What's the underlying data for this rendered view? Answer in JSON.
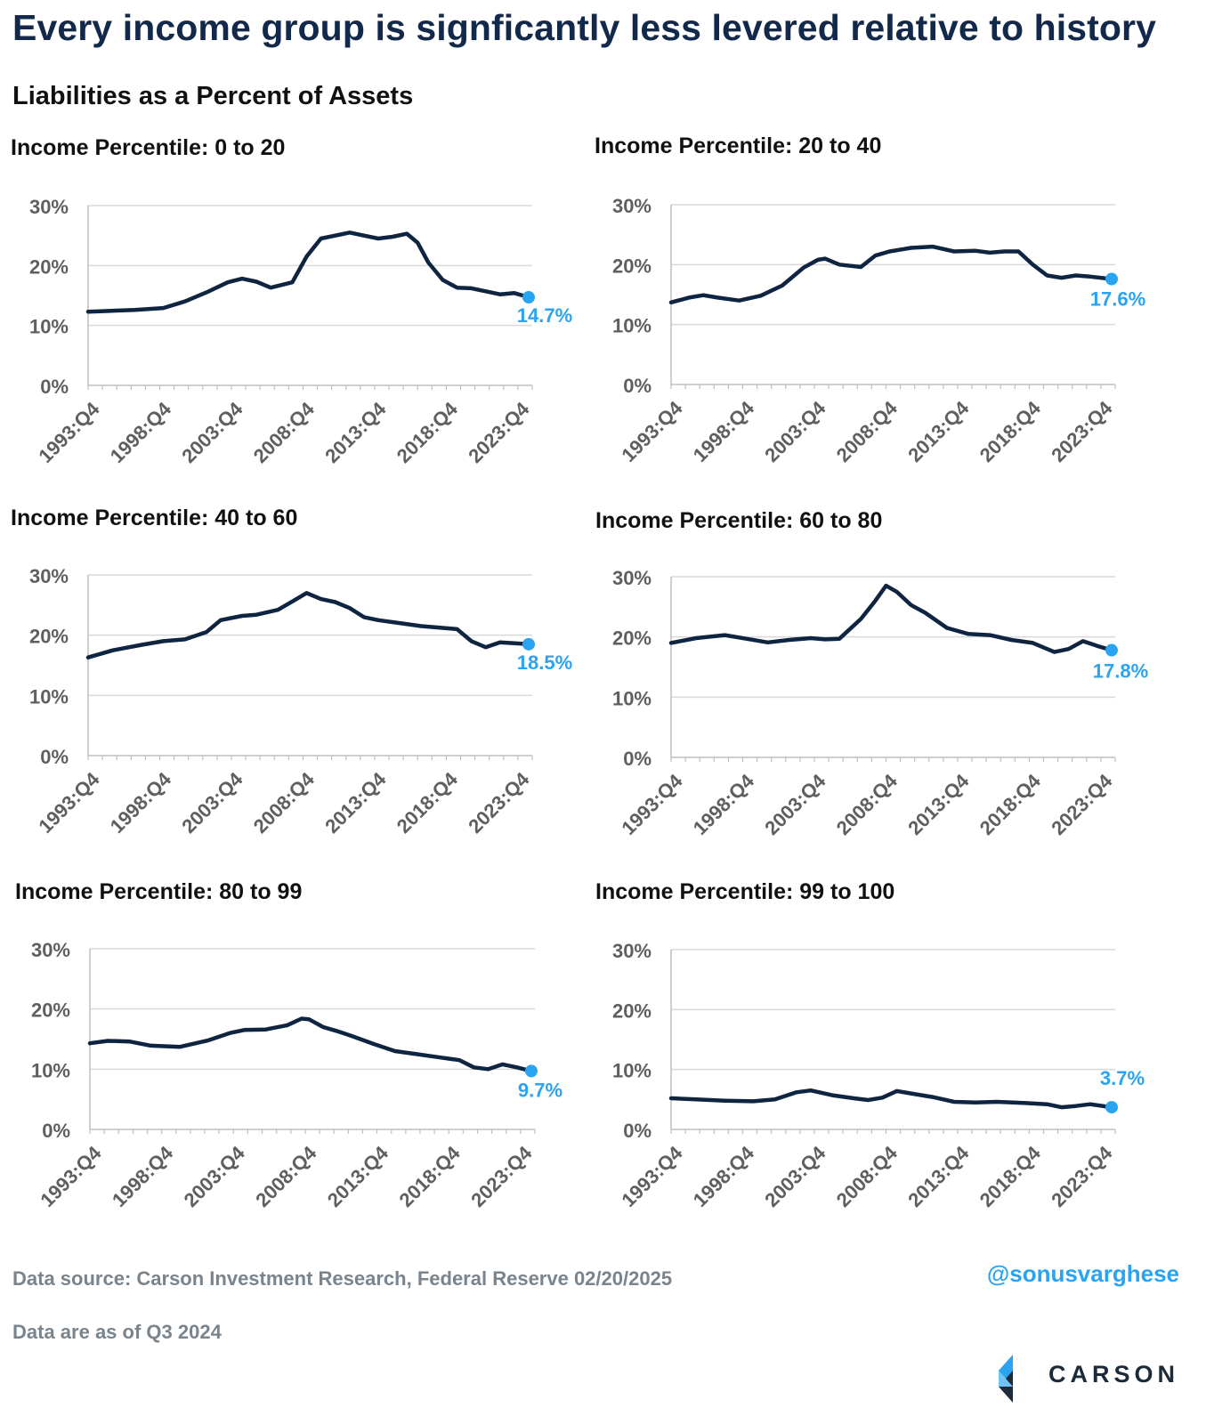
{
  "title": "Every income group is signficantly less levered relative to history",
  "subtitle": "Liabilities as a Percent of Assets",
  "footer": {
    "source": "Data source: Carson Investment Research, Federal Reserve   02/20/2025",
    "asof": "Data are as of Q3 2024",
    "handle": "@sonusvarghese",
    "logo": "CARSON"
  },
  "colors": {
    "line": "#0e2440",
    "accent": "#2aa3f0",
    "axis": "#5f5f5f",
    "grid": "#d9d9d9"
  },
  "chart_data": [
    {
      "type": "line",
      "title": "Income Percentile: 0 to 20",
      "ylim": [
        0,
        30
      ],
      "yticks": [
        "0%",
        "10%",
        "20%",
        "30%"
      ],
      "xticks": [
        "1993:Q4",
        "1998:Q4",
        "2003:Q4",
        "2008:Q4",
        "2013:Q4",
        "2018:Q4",
        "2023:Q4"
      ],
      "last_label": "14.7%",
      "x": [
        1993.75,
        1995,
        1997,
        1999,
        2000.5,
        2002,
        2003.5,
        2004.5,
        2005.5,
        2006.5,
        2008,
        2009,
        2010,
        2011,
        2012,
        2013,
        2014,
        2015,
        2016,
        2016.75,
        2017.5,
        2018.5,
        2019.5,
        2020.5,
        2021.5,
        2022.5,
        2023.5,
        2024.5
      ],
      "y": [
        12.3,
        12.4,
        12.6,
        12.9,
        14,
        15.5,
        17.2,
        17.8,
        17.3,
        16.3,
        17.2,
        21.5,
        24.5,
        25,
        25.5,
        25,
        24.5,
        24.8,
        25.3,
        23.8,
        20.5,
        17.6,
        16.3,
        16.2,
        15.7,
        15.2,
        15.4,
        14.7
      ]
    },
    {
      "type": "line",
      "title": "Income Percentile: 20 to 40",
      "ylim": [
        0,
        30
      ],
      "yticks": [
        "0%",
        "10%",
        "20%",
        "30%"
      ],
      "xticks": [
        "1993:Q4",
        "1998:Q4",
        "2003:Q4",
        "2008:Q4",
        "2013:Q4",
        "2018:Q4",
        "2023:Q4"
      ],
      "last_label": "17.6%",
      "x": [
        1993.75,
        1995,
        1996,
        1997,
        1998.5,
        2000,
        2001.5,
        2003,
        2004,
        2004.5,
        2005.5,
        2007,
        2008,
        2009,
        2010.5,
        2012,
        2013.5,
        2015,
        2016,
        2017,
        2018,
        2019,
        2020,
        2021,
        2022,
        2023,
        2024.5
      ],
      "y": [
        13.7,
        14.5,
        14.9,
        14.5,
        14,
        14.8,
        16.5,
        19.5,
        20.8,
        21,
        20,
        19.6,
        21.5,
        22.2,
        22.8,
        23,
        22.2,
        22.3,
        22,
        22.2,
        22.2,
        20,
        18.2,
        17.8,
        18.2,
        18,
        17.6
      ]
    },
    {
      "type": "line",
      "title": "Income Percentile: 40 to 60",
      "ylim": [
        0,
        30
      ],
      "yticks": [
        "0%",
        "10%",
        "20%",
        "30%"
      ],
      "xticks": [
        "1993:Q4",
        "1998:Q4",
        "2003:Q4",
        "2008:Q4",
        "2013:Q4",
        "2018:Q4",
        "2023:Q4"
      ],
      "last_label": "18.5%",
      "x": [
        1993.75,
        1995.5,
        1997.5,
        1999,
        2000.5,
        2002,
        2003,
        2004.5,
        2005.5,
        2007,
        2008,
        2009,
        2010,
        2011,
        2012,
        2013,
        2014,
        2015.5,
        2017,
        2018.5,
        2019.5,
        2020.5,
        2021.5,
        2022.5,
        2024.5
      ],
      "y": [
        16.3,
        17.5,
        18.4,
        19,
        19.3,
        20.5,
        22.5,
        23.2,
        23.4,
        24.2,
        25.6,
        27,
        26,
        25.5,
        24.5,
        23,
        22.5,
        22,
        21.5,
        21.2,
        21,
        19,
        18,
        18.8,
        18.5
      ]
    },
    {
      "type": "line",
      "title": "Income Percentile: 60 to 80",
      "ylim": [
        0,
        30
      ],
      "yticks": [
        "0%",
        "10%",
        "20%",
        "30%"
      ],
      "xticks": [
        "1993:Q4",
        "1998:Q4",
        "2003:Q4",
        "2008:Q4",
        "2013:Q4",
        "2018:Q4",
        "2023:Q4"
      ],
      "last_label": "17.8%",
      "x": [
        1993.75,
        1995.5,
        1997.5,
        1999,
        2000.5,
        2002,
        2003.5,
        2004.5,
        2005.5,
        2007,
        2008,
        2008.75,
        2009.5,
        2010.5,
        2011.5,
        2013,
        2014.5,
        2016,
        2017.5,
        2019,
        2020.5,
        2021.5,
        2022.5,
        2023.5,
        2024.5
      ],
      "y": [
        19,
        19.8,
        20.3,
        19.7,
        19.1,
        19.5,
        19.8,
        19.6,
        19.7,
        23,
        26,
        28.5,
        27.5,
        25.3,
        24,
        21.5,
        20.5,
        20.3,
        19.5,
        19,
        17.5,
        18,
        19.3,
        18.5,
        17.8
      ]
    },
    {
      "type": "line",
      "title": "Income Percentile: 80 to 99",
      "ylim": [
        0,
        30
      ],
      "yticks": [
        "0%",
        "10%",
        "20%",
        "30%"
      ],
      "xticks": [
        "1993:Q4",
        "1998:Q4",
        "2003:Q4",
        "2008:Q4",
        "2013:Q4",
        "2018:Q4",
        "2023:Q4"
      ],
      "last_label": "9.7%",
      "x": [
        1993.75,
        1995,
        1996.5,
        1998,
        2000,
        2002,
        2003.5,
        2004.5,
        2006,
        2007.5,
        2008.5,
        2009,
        2010,
        2011,
        2012,
        2013.5,
        2015,
        2016.5,
        2018,
        2019.5,
        2020.5,
        2021.5,
        2022.5,
        2023.5,
        2024.5
      ],
      "y": [
        14.3,
        14.7,
        14.6,
        13.9,
        13.7,
        14.8,
        16,
        16.5,
        16.6,
        17.3,
        18.4,
        18.3,
        17,
        16.3,
        15.5,
        14.2,
        13,
        12.5,
        12,
        11.5,
        10.3,
        10,
        10.8,
        10.3,
        9.7
      ]
    },
    {
      "type": "line",
      "title": "Income Percentile: 99 to 100",
      "ylim": [
        0,
        30
      ],
      "yticks": [
        "0%",
        "10%",
        "20%",
        "30%"
      ],
      "xticks": [
        "1993:Q4",
        "1998:Q4",
        "2003:Q4",
        "2008:Q4",
        "2013:Q4",
        "2018:Q4",
        "2023:Q4"
      ],
      "last_label": "3.7%",
      "x": [
        1993.75,
        1995.5,
        1997.5,
        1999.5,
        2001,
        2002.5,
        2003.5,
        2005,
        2006.5,
        2007.5,
        2008.5,
        2009.5,
        2010.5,
        2012,
        2013.5,
        2015,
        2016.5,
        2018.5,
        2020,
        2021,
        2022,
        2023,
        2024.5
      ],
      "y": [
        5.2,
        5,
        4.8,
        4.7,
        5,
        6.2,
        6.5,
        5.7,
        5.2,
        4.9,
        5.3,
        6.4,
        6,
        5.4,
        4.6,
        4.5,
        4.6,
        4.4,
        4.2,
        3.7,
        3.9,
        4.2,
        3.7
      ]
    }
  ]
}
